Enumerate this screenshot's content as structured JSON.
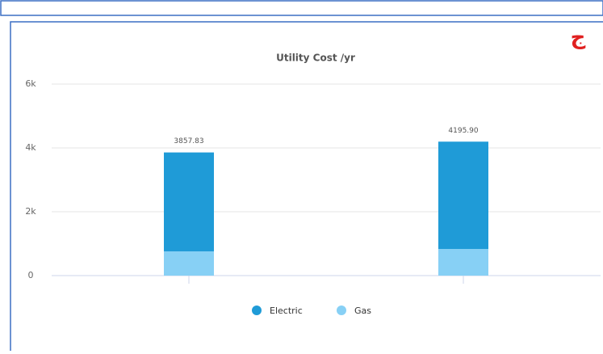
{
  "chart_data": {
    "type": "bar",
    "title": "Utility Cost /yr",
    "annotation": "ج",
    "categories": [
      null,
      null
    ],
    "series": [
      {
        "name": "Gas",
        "color": "#87d0f5",
        "values": [
          760,
          835
        ]
      },
      {
        "name": "Electric",
        "color": "#1f9bd7",
        "values": [
          3097.83,
          3360.9
        ]
      }
    ],
    "totals": [
      3857.83,
      4195.9
    ],
    "total_labels": [
      "3857.83",
      "4195.90"
    ],
    "stacked": true,
    "ylim": [
      0,
      6000
    ],
    "yticks": [
      0,
      {
        "value": 2000,
        "label": "2k"
      },
      {
        "value": 4000,
        "label": "4k"
      },
      {
        "value": 6000,
        "label": "6k"
      }
    ],
    "grid": true,
    "legend": "bottom"
  }
}
